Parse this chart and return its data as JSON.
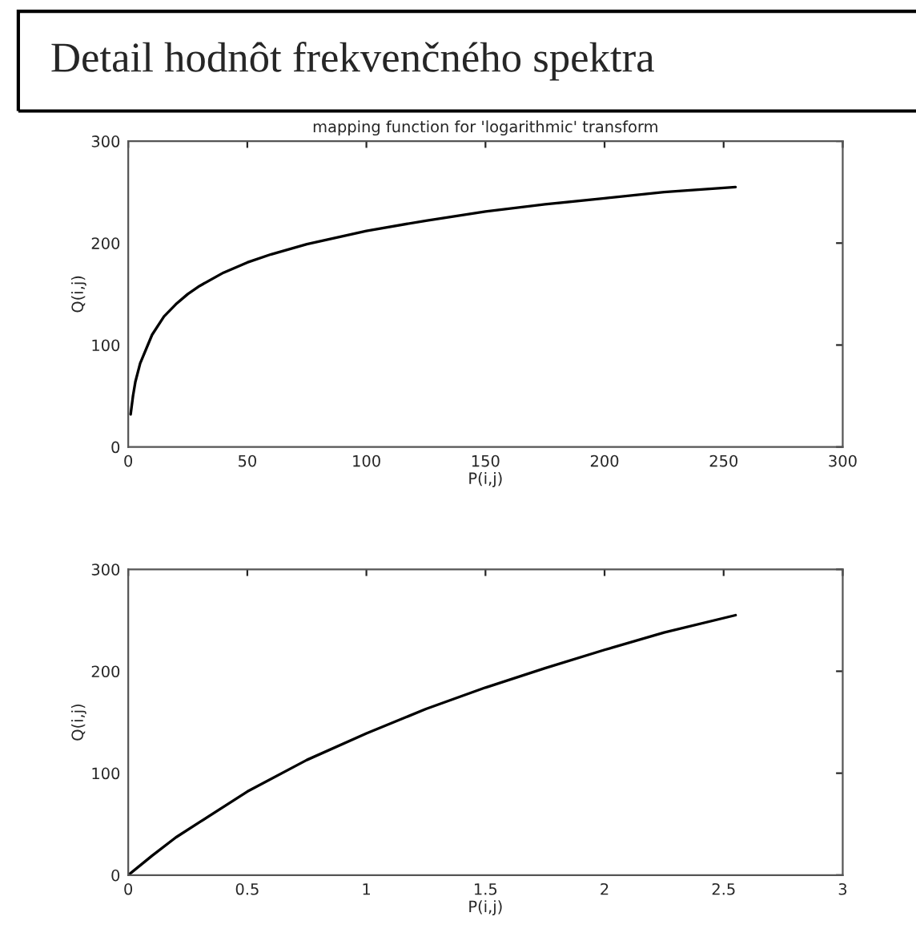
{
  "chart_data": [
    {
      "type": "line",
      "title": "Detail hodnôt frekvenčného spektra",
      "subtitle": "mapping function for 'logarithmic' transform",
      "xlabel": "P(i,j)",
      "ylabel": "Q(i,j)",
      "x": [
        1,
        2,
        3,
        5,
        10,
        15,
        20,
        25,
        30,
        40,
        50,
        60,
        75,
        100,
        125,
        150,
        175,
        200,
        225,
        255
      ],
      "series": [
        {
          "color": "#000000",
          "values": [
            32,
            50,
            64,
            82,
            110,
            128,
            140,
            150,
            158,
            171,
            181,
            189,
            199,
            212,
            222,
            231,
            238,
            244,
            250,
            255
          ]
        }
      ],
      "xlim": [
        0,
        300
      ],
      "xticks": [
        0,
        50,
        100,
        150,
        200,
        250,
        300
      ],
      "ylim": [
        0,
        300
      ],
      "yticks": [
        0,
        100,
        200,
        300
      ],
      "grid": false,
      "legend": false
    },
    {
      "type": "line",
      "xlabel": "P(i,j)",
      "ylabel": "Q(i,j)",
      "x": [
        0,
        0.1,
        0.2,
        0.3,
        0.5,
        0.75,
        1,
        1.25,
        1.5,
        1.75,
        2,
        2.25,
        2.55
      ],
      "series": [
        {
          "color": "#000000",
          "values": [
            0,
            19,
            37,
            52,
            82,
            113,
            139,
            163,
            184,
            203,
            221,
            238,
            255
          ]
        }
      ],
      "xlim": [
        0,
        3
      ],
      "xticks": [
        0,
        0.5,
        1,
        1.5,
        2,
        2.5,
        3
      ],
      "ylim": [
        0,
        300
      ],
      "yticks": [
        0,
        100,
        200,
        300
      ],
      "grid": false,
      "legend": false
    }
  ]
}
